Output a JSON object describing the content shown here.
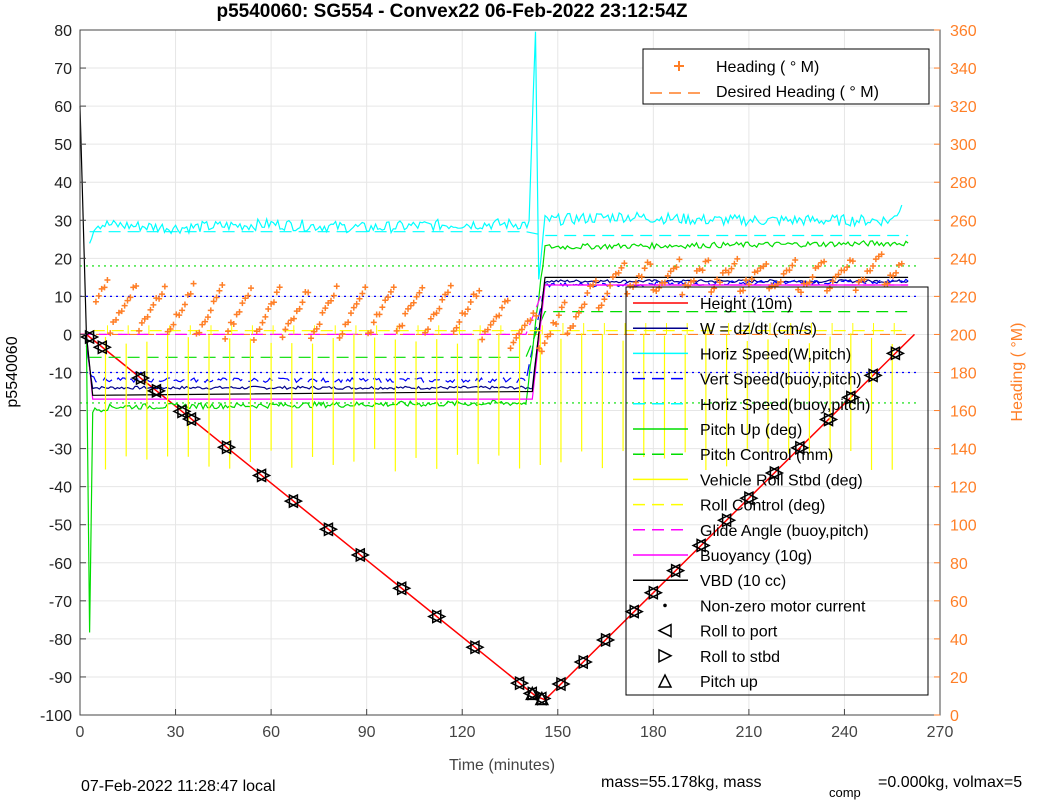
{
  "title": "p5540060: SG554 - Convex22 06-Feb-2022 23:12:54Z",
  "footer": {
    "local_time": "07-Feb-2022 11:28:47 local",
    "mass_text": "mass=55.178kg, mass",
    "mass_sub": "comp",
    "mass_rest": "=0.000kg, volmax=5"
  },
  "colors": {
    "orange": "#ff7f27",
    "cyan": "#00ffff",
    "blue": "#0000ff",
    "green": "#00dd00",
    "yellow": "#ffff00",
    "magenta": "#ff00ff",
    "red": "#ff0000",
    "black": "#000000"
  },
  "chart_data": {
    "type": "line",
    "title": "p5540060: SG554 - Convex22 06-Feb-2022 23:12:54Z",
    "xlabel": "Time (minutes)",
    "ylabel": "p5540060",
    "y2label": "Heading (  °M)",
    "xlim": [
      0,
      270
    ],
    "ylim": [
      -100,
      80
    ],
    "y2lim": [
      0,
      360
    ],
    "xticks": [
      "0",
      "30",
      "60",
      "90",
      "120",
      "150",
      "180",
      "210",
      "240",
      "270"
    ],
    "yticks": [
      "-100",
      "-90",
      "-80",
      "-70",
      "-60",
      "-50",
      "-40",
      "-30",
      "-20",
      "-10",
      "0",
      "10",
      "20",
      "30",
      "40",
      "50",
      "60",
      "70",
      "80"
    ],
    "y2ticks": [
      "0",
      "20",
      "40",
      "60",
      "80",
      "100",
      "120",
      "140",
      "160",
      "180",
      "200",
      "220",
      "240",
      "260",
      "280",
      "300",
      "320",
      "340",
      "360"
    ],
    "grid": true,
    "legend_top": [
      {
        "label": "Heading (  ° M)",
        "color": "#ff7f27",
        "style": "plus"
      },
      {
        "label": "Desired Heading (    ° M)",
        "color": "#ff7f27",
        "style": "dashed"
      }
    ],
    "legend_main": [
      {
        "label": "Height (10m)",
        "color": "#ff0000",
        "style": "solid"
      },
      {
        "label": "W = dz/dt (cm/s)",
        "color": "#00008b",
        "style": "solid"
      },
      {
        "label": "Horiz Speed(W,pitch)",
        "color": "#00ffff",
        "style": "solid"
      },
      {
        "label": "Vert Speed(buoy,pitch)",
        "color": "#0000ff",
        "style": "dashed"
      },
      {
        "label": "Horiz Speed(buoy,pitch)",
        "color": "#00ffff",
        "style": "dashed"
      },
      {
        "label": "Pitch Up (deg)",
        "color": "#00dd00",
        "style": "solid"
      },
      {
        "label": "Pitch Control (mm)",
        "color": "#00dd00",
        "style": "dashed"
      },
      {
        "label": "Vehicle Roll Stbd (deg)",
        "color": "#ffff00",
        "style": "solid"
      },
      {
        "label": "Roll Control (deg)",
        "color": "#ffff00",
        "style": "dashed"
      },
      {
        "label": "Glide Angle (buoy,pitch)",
        "color": "#ff00ff",
        "style": "dashed"
      },
      {
        "label": "Buoyancy (10g)",
        "color": "#ff00ff",
        "style": "solid"
      },
      {
        "label": "VBD (10 cc)",
        "color": "#000000",
        "style": "solid"
      },
      {
        "label": "Non-zero motor current",
        "color": "#000000",
        "style": "dot"
      },
      {
        "label": "Roll to port",
        "color": "#000000",
        "style": "tri-left"
      },
      {
        "label": "Roll to stbd",
        "color": "#000000",
        "style": "tri-right"
      },
      {
        "label": "Pitch up",
        "color": "#000000",
        "style": "tri-up"
      }
    ],
    "series": [
      {
        "name": "Height (10m)",
        "x": [
          0,
          2,
          143,
          146,
          262
        ],
        "y": [
          0,
          0,
          -95,
          -96,
          0
        ]
      },
      {
        "name": "W = dz/dt (cm/s)",
        "x": [
          2,
          4,
          142,
          146,
          260
        ],
        "y": [
          -3,
          -14,
          -14,
          14,
          14
        ]
      },
      {
        "name": "Horiz Speed(W,pitch)",
        "x": [
          3,
          5,
          30,
          60,
          90,
          120,
          141,
          143,
          144,
          146,
          170,
          200,
          230,
          255,
          258
        ],
        "y": [
          25,
          29,
          28,
          29,
          28,
          29,
          29,
          80,
          14,
          30,
          31,
          30,
          30,
          30,
          34
        ]
      },
      {
        "name": "Vert Speed(buoy,pitch)",
        "x": [
          3,
          5,
          140,
          146,
          260
        ],
        "y": [
          -10,
          -12,
          -12,
          13,
          14
        ]
      },
      {
        "name": "Horiz Speed(buoy,pitch)",
        "x": [
          3,
          5,
          140,
          146,
          260
        ],
        "y": [
          27,
          27,
          27,
          26,
          26
        ]
      },
      {
        "name": "Pitch Up (deg)",
        "x": [
          2,
          3,
          4,
          10,
          140,
          146,
          260
        ],
        "y": [
          0,
          -78,
          -20,
          -19,
          -18,
          23,
          24
        ]
      },
      {
        "name": "Pitch Control (mm)",
        "x": [
          3,
          140,
          146,
          260
        ],
        "y": [
          -6,
          -6,
          6,
          6
        ]
      },
      {
        "name": "Glide Angle (buoy,pitch)",
        "x": [
          0,
          140,
          146,
          260
        ],
        "y": [
          0,
          0,
          13,
          13
        ]
      },
      {
        "name": "Buoyancy (10g)",
        "x": [
          2,
          4,
          142,
          146,
          260
        ],
        "y": [
          0,
          -17,
          -17,
          13,
          13
        ]
      },
      {
        "name": "VBD (10 cc)",
        "x": [
          0,
          2,
          4,
          142,
          146,
          260
        ],
        "y": [
          60,
          0,
          -16,
          -15,
          15,
          15
        ]
      }
    ],
    "heading_approx": {
      "x": [
        5,
        60,
        120,
        145,
        170,
        200,
        230,
        258
      ],
      "y2": [
        215,
        210,
        215,
        200,
        230,
        232,
        230,
        235
      ]
    },
    "desired_heading": {
      "x": [
        0,
        260
      ],
      "y2": [
        200,
        200
      ]
    },
    "reference_levels": [
      {
        "y": 18,
        "color": "#00dd00"
      },
      {
        "y": -18,
        "color": "#00dd00"
      },
      {
        "y": 10,
        "color": "#0000ff"
      },
      {
        "y": -10,
        "color": "#0000ff"
      }
    ]
  }
}
